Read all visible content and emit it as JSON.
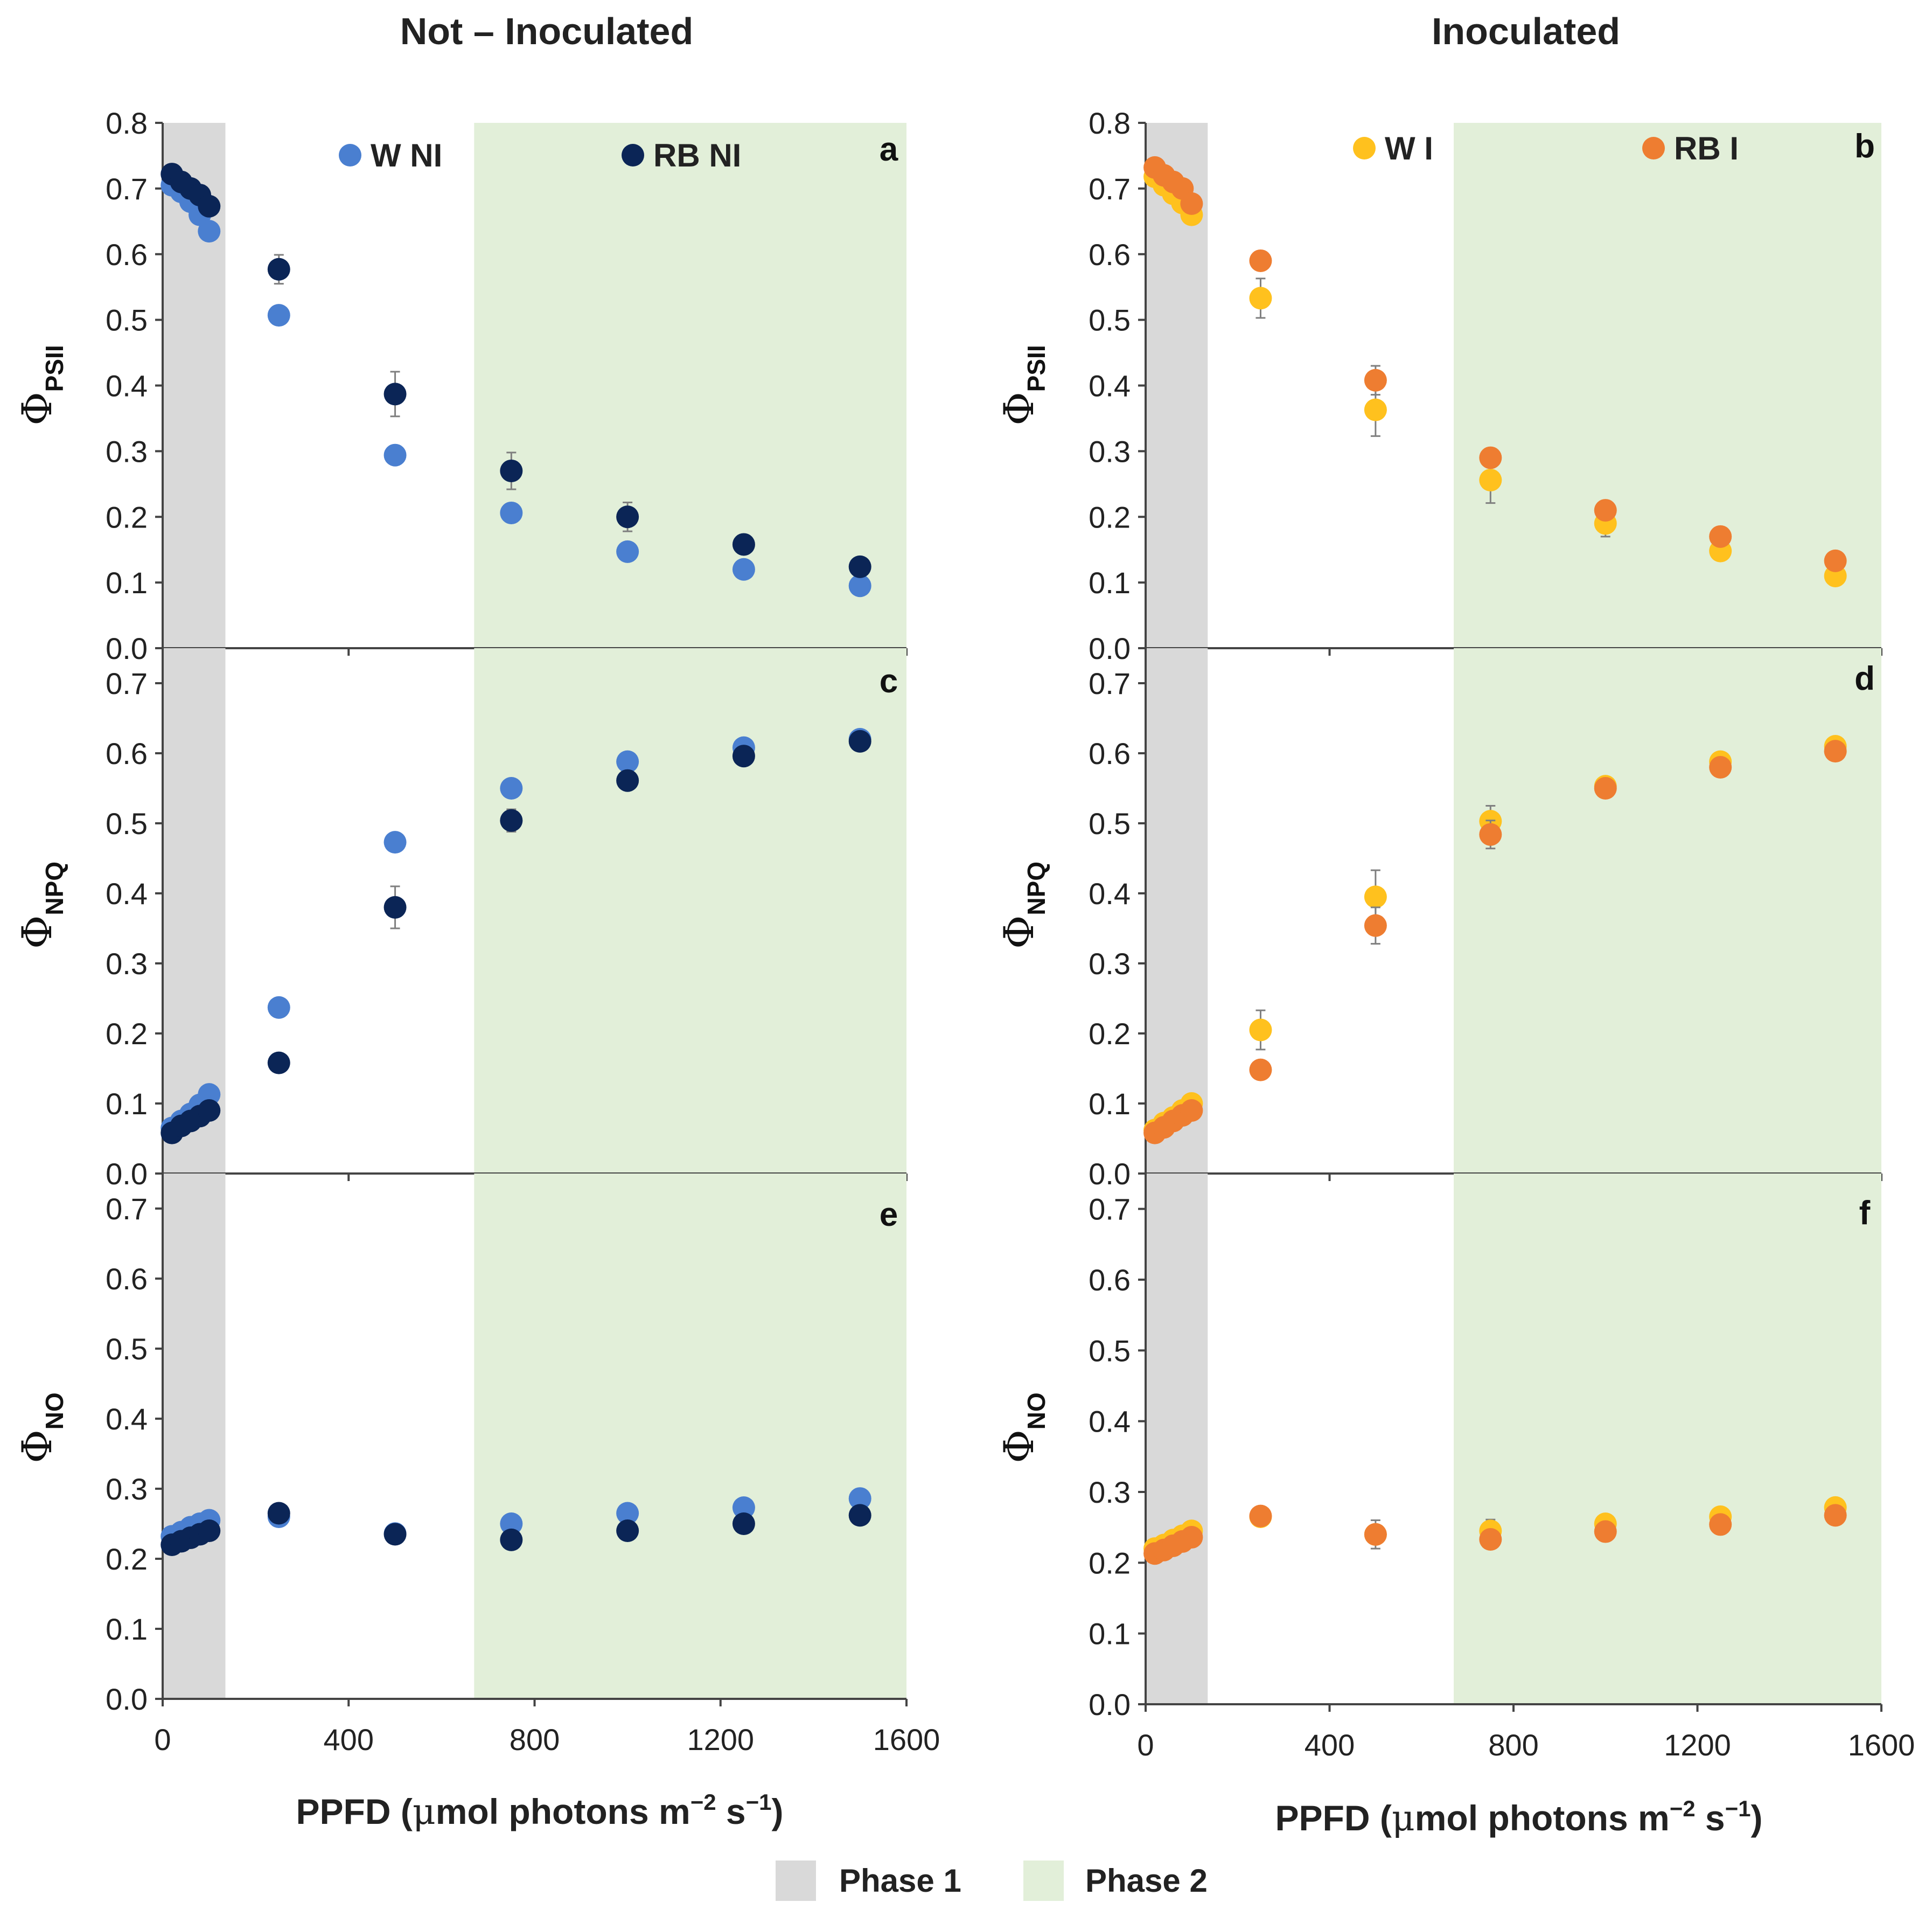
{
  "column_titles": {
    "left": "Not – Inoculated",
    "right": "Inoculated"
  },
  "xaxis": {
    "label_prefix": "PPFD (",
    "label_mu": "μ",
    "label_mid": "mol photons m",
    "label_exp1": "−2",
    "label_s": " s",
    "label_exp2": "−1",
    "label_suffix": ")",
    "ticks": [
      "0",
      "400",
      "800",
      "1200",
      "1600"
    ],
    "tick_values": [
      0,
      400,
      800,
      1200,
      1600
    ],
    "range": [
      0,
      1600
    ]
  },
  "phases": [
    {
      "name": "Phase 1",
      "from": 0,
      "to": 135,
      "color": "#d9d9d9"
    },
    {
      "name": "Phase 2",
      "from": 670,
      "to": 1600,
      "color": "#e2efd9"
    }
  ],
  "colors": {
    "W NI": "#4a7fd0",
    "RB NI": "#0b2556",
    "W I": "#ffc11e",
    "RB I": "#ee7d31",
    "errorbar": "#7f7f7f",
    "axis": "#444444"
  },
  "legends": {
    "left": [
      {
        "name": "W NI"
      },
      {
        "name": "RB NI"
      }
    ],
    "right": [
      {
        "name": "W I"
      },
      {
        "name": "RB I"
      }
    ]
  },
  "chart_data": [
    {
      "id": "a",
      "type": "scatter",
      "letter": "a",
      "ylabel_main": "Φ",
      "ylabel_sub": "PSII",
      "ylim": [
        0,
        0.8
      ],
      "yticks": [
        "0.0",
        "0.1",
        "0.2",
        "0.3",
        "0.4",
        "0.5",
        "0.6",
        "0.7",
        "0.8"
      ],
      "ytick_values": [
        0,
        0.1,
        0.2,
        0.3,
        0.4,
        0.5,
        0.6,
        0.7,
        0.8
      ],
      "series": [
        {
          "name": "W NI",
          "x": [
            20,
            40,
            60,
            80,
            100,
            250,
            500,
            750,
            1000,
            1250,
            1500
          ],
          "y": [
            0.705,
            0.695,
            0.68,
            0.66,
            0.635,
            0.507,
            0.294,
            0.206,
            0.147,
            0.12,
            0.095
          ],
          "err": [
            0.005,
            0.005,
            0.005,
            0.005,
            0.005,
            0.008,
            0.008,
            0.01,
            0.008,
            0.006,
            0.006
          ]
        },
        {
          "name": "RB NI",
          "x": [
            20,
            40,
            60,
            80,
            100,
            250,
            500,
            750,
            1000,
            1250,
            1500
          ],
          "y": [
            0.722,
            0.71,
            0.7,
            0.69,
            0.673,
            0.577,
            0.387,
            0.27,
            0.2,
            0.158,
            0.124
          ],
          "err": [
            0.006,
            0.006,
            0.006,
            0.006,
            0.006,
            0.022,
            0.034,
            0.028,
            0.022,
            0.008,
            0.006
          ]
        }
      ]
    },
    {
      "id": "b",
      "type": "scatter",
      "letter": "b",
      "ylabel_main": "Φ",
      "ylabel_sub": "PSII",
      "ylim": [
        0,
        0.8
      ],
      "yticks": [
        "0.0",
        "0.1",
        "0.2",
        "0.3",
        "0.4",
        "0.5",
        "0.6",
        "0.7",
        "0.8"
      ],
      "ytick_values": [
        0,
        0.1,
        0.2,
        0.3,
        0.4,
        0.5,
        0.6,
        0.7,
        0.8
      ],
      "series": [
        {
          "name": "W I",
          "x": [
            20,
            40,
            60,
            80,
            100,
            250,
            500,
            750,
            1000,
            1250,
            1500
          ],
          "y": [
            0.718,
            0.705,
            0.692,
            0.678,
            0.66,
            0.533,
            0.363,
            0.256,
            0.19,
            0.148,
            0.11
          ],
          "err": [
            0.006,
            0.006,
            0.006,
            0.006,
            0.006,
            0.03,
            0.04,
            0.035,
            0.02,
            0.014,
            0.008
          ]
        },
        {
          "name": "RB I",
          "x": [
            20,
            40,
            60,
            80,
            100,
            250,
            500,
            750,
            1000,
            1250,
            1500
          ],
          "y": [
            0.732,
            0.72,
            0.71,
            0.7,
            0.677,
            0.59,
            0.408,
            0.29,
            0.21,
            0.17,
            0.133
          ],
          "err": [
            0.005,
            0.005,
            0.005,
            0.005,
            0.005,
            0.008,
            0.022,
            0.012,
            0.01,
            0.008,
            0.006
          ]
        }
      ]
    },
    {
      "id": "c",
      "type": "scatter",
      "letter": "c",
      "ylabel_main": "Φ",
      "ylabel_sub": "NPQ",
      "ylim": [
        0,
        0.75
      ],
      "yticks": [
        "0.0",
        "0.1",
        "0.2",
        "0.3",
        "0.4",
        "0.5",
        "0.6",
        "0.7"
      ],
      "ytick_values": [
        0,
        0.1,
        0.2,
        0.3,
        0.4,
        0.5,
        0.6,
        0.7
      ],
      "series": [
        {
          "name": "W NI",
          "x": [
            20,
            40,
            60,
            80,
            100,
            250,
            500,
            750,
            1000,
            1250,
            1500
          ],
          "y": [
            0.065,
            0.075,
            0.085,
            0.098,
            0.113,
            0.237,
            0.473,
            0.55,
            0.588,
            0.608,
            0.62
          ],
          "err": [
            0.004,
            0.004,
            0.004,
            0.004,
            0.005,
            0.008,
            0.01,
            0.01,
            0.01,
            0.008,
            0.006
          ]
        },
        {
          "name": "RB NI",
          "x": [
            20,
            40,
            60,
            80,
            100,
            250,
            500,
            750,
            1000,
            1250,
            1500
          ],
          "y": [
            0.058,
            0.068,
            0.075,
            0.082,
            0.09,
            0.158,
            0.38,
            0.504,
            0.561,
            0.596,
            0.617
          ],
          "err": [
            0.004,
            0.004,
            0.004,
            0.004,
            0.004,
            0.008,
            0.03,
            0.016,
            0.012,
            0.01,
            0.008
          ]
        }
      ]
    },
    {
      "id": "d",
      "type": "scatter",
      "letter": "d",
      "ylabel_main": "Φ",
      "ylabel_sub": "NPQ",
      "ylim": [
        0,
        0.75
      ],
      "yticks": [
        "0.0",
        "0.1",
        "0.2",
        "0.3",
        "0.4",
        "0.5",
        "0.6",
        "0.7"
      ],
      "ytick_values": [
        0,
        0.1,
        0.2,
        0.3,
        0.4,
        0.5,
        0.6,
        0.7
      ],
      "series": [
        {
          "name": "W I",
          "x": [
            20,
            40,
            60,
            80,
            100,
            250,
            500,
            750,
            1000,
            1250,
            1500
          ],
          "y": [
            0.062,
            0.072,
            0.08,
            0.09,
            0.1,
            0.205,
            0.395,
            0.503,
            0.553,
            0.588,
            0.61
          ],
          "err": [
            0.004,
            0.004,
            0.004,
            0.004,
            0.005,
            0.028,
            0.038,
            0.022,
            0.012,
            0.01,
            0.008
          ]
        },
        {
          "name": "RB I",
          "x": [
            20,
            40,
            60,
            80,
            100,
            250,
            500,
            750,
            1000,
            1250,
            1500
          ],
          "y": [
            0.058,
            0.066,
            0.075,
            0.083,
            0.09,
            0.148,
            0.354,
            0.484,
            0.55,
            0.58,
            0.603
          ],
          "err": [
            0.004,
            0.004,
            0.004,
            0.004,
            0.004,
            0.008,
            0.026,
            0.02,
            0.012,
            0.01,
            0.008
          ]
        }
      ]
    },
    {
      "id": "e",
      "type": "scatter",
      "letter": "e",
      "ylabel_main": "Φ",
      "ylabel_sub": "NO",
      "ylim": [
        0,
        0.75
      ],
      "yticks": [
        "0.0",
        "0.1",
        "0.2",
        "0.3",
        "0.4",
        "0.5",
        "0.6",
        "0.7"
      ],
      "ytick_values": [
        0,
        0.1,
        0.2,
        0.3,
        0.4,
        0.5,
        0.6,
        0.7
      ],
      "series": [
        {
          "name": "W NI",
          "x": [
            20,
            40,
            60,
            80,
            100,
            250,
            500,
            750,
            1000,
            1250,
            1500
          ],
          "y": [
            0.232,
            0.238,
            0.245,
            0.25,
            0.255,
            0.26,
            0.236,
            0.25,
            0.265,
            0.273,
            0.286
          ],
          "err": [
            0.004,
            0.004,
            0.004,
            0.004,
            0.004,
            0.006,
            0.006,
            0.006,
            0.006,
            0.006,
            0.006
          ]
        },
        {
          "name": "RB NI",
          "x": [
            20,
            40,
            60,
            80,
            100,
            250,
            500,
            750,
            1000,
            1250,
            1500
          ],
          "y": [
            0.22,
            0.225,
            0.23,
            0.235,
            0.24,
            0.265,
            0.235,
            0.227,
            0.24,
            0.25,
            0.262
          ],
          "err": [
            0.004,
            0.004,
            0.004,
            0.004,
            0.004,
            0.008,
            0.008,
            0.01,
            0.008,
            0.006,
            0.006
          ]
        }
      ]
    },
    {
      "id": "f",
      "type": "scatter",
      "letter": "f",
      "ylabel_main": "Φ",
      "ylabel_sub": "NO",
      "ylim": [
        0,
        0.75
      ],
      "yticks": [
        "0.0",
        "0.1",
        "0.2",
        "0.3",
        "0.4",
        "0.5",
        "0.6",
        "0.7"
      ],
      "ytick_values": [
        0,
        0.1,
        0.2,
        0.3,
        0.4,
        0.5,
        0.6,
        0.7
      ],
      "series": [
        {
          "name": "W I",
          "x": [
            20,
            40,
            60,
            80,
            100,
            250,
            500,
            750,
            1000,
            1250,
            1500
          ],
          "y": [
            0.22,
            0.225,
            0.232,
            0.238,
            0.245,
            0.265,
            0.24,
            0.245,
            0.255,
            0.265,
            0.278
          ],
          "err": [
            0.004,
            0.004,
            0.004,
            0.004,
            0.004,
            0.01,
            0.02,
            0.016,
            0.01,
            0.008,
            0.006
          ]
        },
        {
          "name": "RB I",
          "x": [
            20,
            40,
            60,
            80,
            100,
            250,
            500,
            750,
            1000,
            1250,
            1500
          ],
          "y": [
            0.213,
            0.218,
            0.224,
            0.23,
            0.236,
            0.266,
            0.24,
            0.233,
            0.244,
            0.254,
            0.267
          ],
          "err": [
            0.004,
            0.004,
            0.004,
            0.004,
            0.004,
            0.008,
            0.008,
            0.012,
            0.008,
            0.006,
            0.006
          ]
        }
      ]
    }
  ]
}
